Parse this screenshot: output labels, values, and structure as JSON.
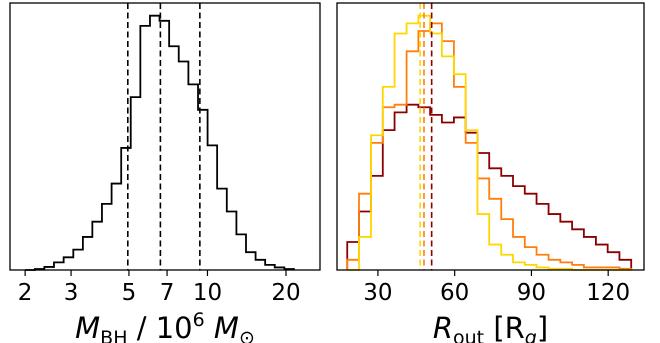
{
  "chart_data": [
    {
      "type": "histogram",
      "xscale": "log",
      "xlim": [
        1.75,
        27
      ],
      "ylim": [
        0,
        1.05
      ],
      "xticks": [
        2,
        3,
        5,
        7,
        10,
        20
      ],
      "xtick_labels": [
        "2",
        "3",
        "5",
        "7",
        "10",
        "20"
      ],
      "xlabel_main": "M",
      "xlabel_sub": "BH",
      "xlabel_mid": " / 10",
      "xlabel_sup": "6",
      "xlabel_unit": "M",
      "xlabel_unit_sub": "⊙",
      "yticks_visible": false,
      "series": [
        {
          "color": "#000000",
          "bin_edges": [
            2.0,
            2.18,
            2.37,
            2.58,
            2.81,
            3.06,
            3.33,
            3.62,
            3.94,
            4.29,
            4.67,
            5.08,
            5.53,
            6.02,
            6.55,
            7.13,
            7.76,
            8.45,
            9.2,
            10.01,
            10.89,
            11.86,
            12.91,
            14.05,
            15.29,
            16.64,
            18.11,
            19.71,
            21.45
          ],
          "counts": [
            0.0,
            0.004,
            0.012,
            0.03,
            0.05,
            0.08,
            0.13,
            0.19,
            0.26,
            0.34,
            0.48,
            0.68,
            0.96,
            1.0,
            0.98,
            0.88,
            0.82,
            0.73,
            0.63,
            0.49,
            0.32,
            0.23,
            0.14,
            0.07,
            0.04,
            0.02,
            0.01,
            0.004
          ]
        }
      ],
      "vlines": [
        {
          "x": 4.95,
          "color": "#000000",
          "style": "dashed"
        },
        {
          "x": 6.6,
          "color": "#000000",
          "style": "dashed"
        },
        {
          "x": 9.35,
          "color": "#000000",
          "style": "dashed"
        }
      ]
    },
    {
      "type": "histogram",
      "xscale": "linear",
      "xlim": [
        14,
        134
      ],
      "ylim": [
        0,
        1.05
      ],
      "xticks": [
        30,
        60,
        90,
        120
      ],
      "xtick_labels": [
        "30",
        "60",
        "90",
        "120"
      ],
      "xlabel_main": "R",
      "xlabel_sub": "out",
      "xlabel_unit": "[R",
      "xlabel_unit_sub": "g",
      "xlabel_close": "]",
      "yticks_visible": false,
      "colors": {
        "dark_red": "#8b0000",
        "orange": "#ff7f0e",
        "gold": "#ffd700"
      },
      "series": [
        {
          "color": "#8b0000",
          "bin_edges": [
            18,
            22.6,
            27.3,
            31.9,
            36.5,
            41.2,
            45.8,
            50.4,
            55,
            59.7,
            64.3,
            68.9,
            73.5,
            78.2,
            82.8,
            87.4,
            92,
            96.7,
            101.3,
            105.9,
            110.5,
            115.2,
            119.8,
            124.4,
            129
          ],
          "counts": [
            0.11,
            0.23,
            0.37,
            0.55,
            0.62,
            0.65,
            0.64,
            0.61,
            0.58,
            0.6,
            0.54,
            0.46,
            0.4,
            0.37,
            0.33,
            0.3,
            0.26,
            0.22,
            0.19,
            0.16,
            0.13,
            0.1,
            0.07,
            0.04
          ]
        },
        {
          "color": "#ff7f0e",
          "bin_edges": [
            18,
            22.6,
            27.3,
            31.9,
            36.5,
            41.2,
            45.8,
            50.4,
            55,
            59.7,
            64.3,
            68.9,
            73.5,
            78.2,
            82.8,
            87.4,
            92,
            96.7,
            101.3,
            105.9,
            110.5,
            115.2,
            119.8,
            124.4,
            129
          ],
          "counts": [
            0.04,
            0.3,
            0.5,
            0.64,
            0.65,
            0.86,
            0.94,
            0.97,
            0.9,
            0.72,
            0.5,
            0.36,
            0.28,
            0.2,
            0.13,
            0.09,
            0.06,
            0.04,
            0.03,
            0.02,
            0.01,
            0.01,
            0.01,
            0.005
          ]
        },
        {
          "color": "#ffd700",
          "bin_edges": [
            18,
            22.6,
            27.3,
            31.9,
            36.5,
            41.2,
            45.8,
            50.4,
            55,
            59.7,
            64.3,
            68.9,
            73.5,
            78.2,
            82.8,
            87.4,
            92,
            96.7,
            101.3,
            105.9,
            110.5,
            115.2,
            119.8,
            124.4,
            129
          ],
          "counts": [
            0.0,
            0.13,
            0.53,
            0.72,
            0.93,
            0.97,
            1.0,
            0.93,
            0.84,
            0.77,
            0.55,
            0.22,
            0.1,
            0.06,
            0.03,
            0.02,
            0.01,
            0.005,
            0.005,
            0.0,
            0.0,
            0.0,
            0.0,
            0.0
          ]
        }
      ],
      "vlines": [
        {
          "x": 46.5,
          "color": "#ffd700",
          "style": "dashed"
        },
        {
          "x": 48,
          "color": "#ff7f0e",
          "style": "dashed"
        },
        {
          "x": 51,
          "color": "#8b0000",
          "style": "dashed"
        }
      ]
    }
  ]
}
